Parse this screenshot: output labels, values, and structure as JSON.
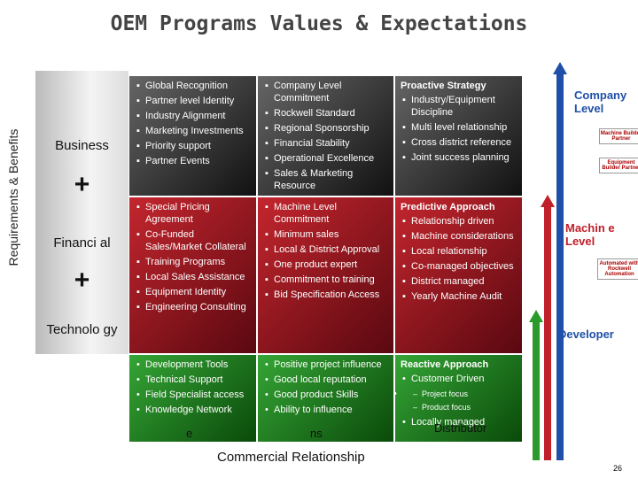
{
  "title": "OEM Programs Values & Expectations",
  "side_label": "Requirements & Benefits",
  "left_panel": [
    "Business",
    "+",
    "Financi al",
    "+",
    "Technolo gy"
  ],
  "grid": {
    "rows": [
      {
        "cells": [
          {
            "items": [
              "Global Recognition",
              "Partner level Identity",
              "Industry Alignment",
              "Marketing Investments",
              "Priority support",
              "Partner Events"
            ]
          },
          {
            "items": [
              "Company Level Commitment",
              "Rockwell Standard",
              "Regional Sponsorship",
              "Financial Stability",
              "Operational Excellence",
              "Sales & Marketing Resource"
            ]
          },
          {
            "heading": "Proactive Strategy",
            "items": [
              "Industry/Equipment Discipline",
              "Multi level relationship",
              "Cross district reference",
              "Joint success planning"
            ]
          }
        ]
      },
      {
        "cells": [
          {
            "items": [
              "Special Pricing Agreement",
              "Co-Funded Sales/Market Collateral",
              "Training Programs",
              "Local Sales Assistance",
              "Equipment Identity",
              "Engineering Consulting"
            ]
          },
          {
            "items": [
              "Machine Level Commitment",
              "Minimum sales",
              "Local & District Approval",
              "One product expert",
              "Commitment to training",
              "Bid Specification Access"
            ]
          },
          {
            "heading": "Predictive Approach",
            "items": [
              "Relationship driven",
              "Machine considerations",
              "Local relationship",
              "Co-managed objectives",
              "District managed",
              "Yearly Machine Audit"
            ]
          }
        ]
      },
      {
        "cells": [
          {
            "items": [
              "Development Tools",
              "Technical Support",
              "Field Specialist access",
              "Knowledge Network"
            ]
          },
          {
            "items": [
              "Positive project influence",
              "Good local reputation",
              "Good product Skills",
              "Ability to influence"
            ]
          },
          {
            "heading": "Reactive Approach",
            "items": [
              "Customer Driven",
              {
                "subitems": [
                  "Project focus",
                  "Product focus"
                ]
              },
              "Locally managed"
            ]
          }
        ]
      }
    ]
  },
  "levels": [
    "Company Level",
    "Machin e Level",
    "Developer"
  ],
  "badges": [
    "Machine Builder Partner",
    "Equipment Builder Partner",
    "Automated with Rockwell Automation"
  ],
  "fragments": [
    "e",
    "ns",
    "Distributor"
  ],
  "bottom_label": "Commercial Relationship",
  "page_number": "26"
}
